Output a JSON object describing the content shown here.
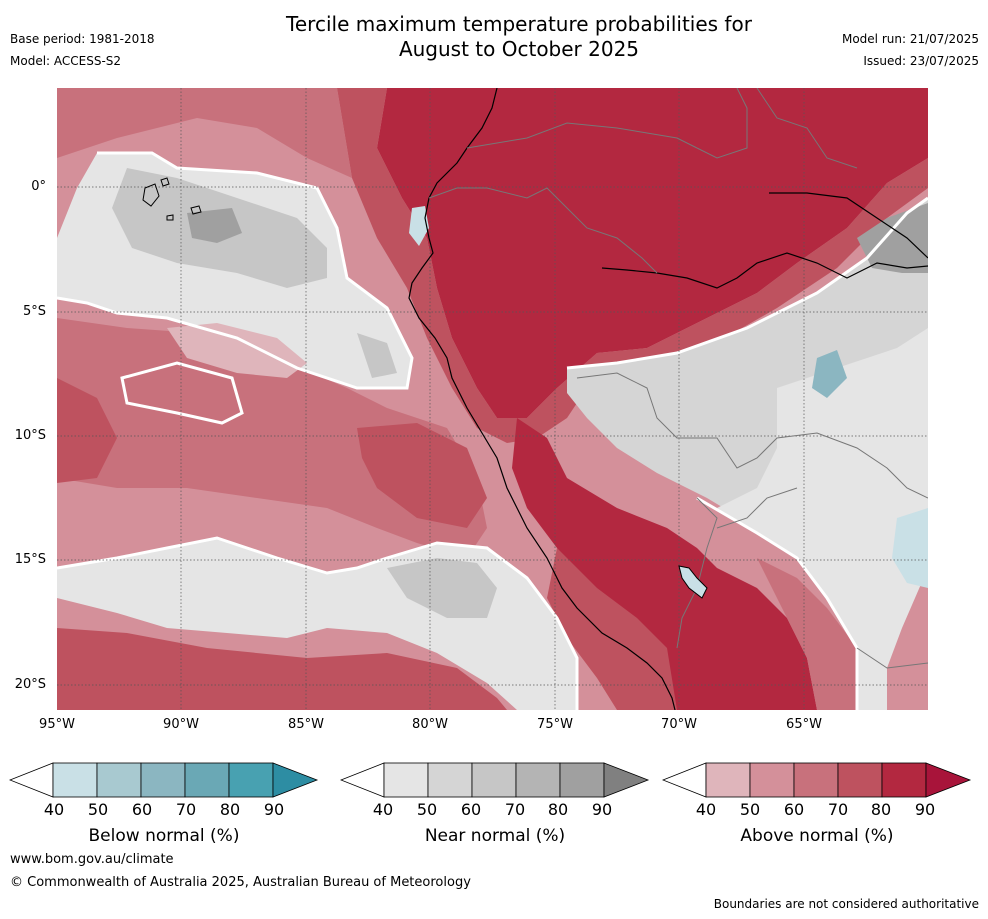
{
  "header": {
    "title_line1": "Tercile maximum temperature probabilities for",
    "title_line2": "August to October 2025",
    "base_period": "Base period: 1981-2018",
    "model": "Model: ACCESS-S2",
    "model_run": "Model run: 21/07/2025",
    "issued": "Issued: 23/07/2025"
  },
  "map": {
    "lat_labels": [
      "0°",
      "5°S",
      "10°S",
      "15°S",
      "20°S"
    ],
    "lon_labels": [
      "95°W",
      "90°W",
      "85°W",
      "80°W",
      "75°W",
      "70°W",
      "65°W"
    ],
    "colors": {
      "above": [
        "#dfb5bb",
        "#d4909a",
        "#c8717c",
        "#be525f",
        "#b32840",
        "#a8143a"
      ],
      "near": [
        "#e5e5e5",
        "#d5d5d5",
        "#c6c6c6",
        "#b4b4b4",
        "#a0a0a0",
        "#808080"
      ],
      "below": [
        "#c9e0e6",
        "#a8c9d0",
        "#8bb6c1",
        "#6aa8b5",
        "#48a1b1",
        "#2d8da3"
      ]
    }
  },
  "legends": [
    {
      "label": "Below normal (%)",
      "ticks": [
        "40",
        "50",
        "60",
        "70",
        "80",
        "90"
      ],
      "colors": [
        "#ffffff",
        "#c9e0e6",
        "#a8c9d0",
        "#8bb6c1",
        "#6aa8b5",
        "#48a1b1",
        "#2d8da3"
      ]
    },
    {
      "label": "Near normal (%)",
      "ticks": [
        "40",
        "50",
        "60",
        "70",
        "80",
        "90"
      ],
      "colors": [
        "#ffffff",
        "#e5e5e5",
        "#d5d5d5",
        "#c6c6c6",
        "#b4b4b4",
        "#a0a0a0",
        "#808080"
      ]
    },
    {
      "label": "Above normal (%)",
      "ticks": [
        "40",
        "50",
        "60",
        "70",
        "80",
        "90"
      ],
      "colors": [
        "#ffffff",
        "#dfb5bb",
        "#d4909a",
        "#c8717c",
        "#be525f",
        "#b32840",
        "#a8143a"
      ]
    }
  ],
  "footer": {
    "website": "www.bom.gov.au/climate",
    "copyright": "© Commonwealth of Australia 2025, Australian Bureau of Meteorology",
    "disclaimer": "Boundaries are not considered authoritative"
  }
}
